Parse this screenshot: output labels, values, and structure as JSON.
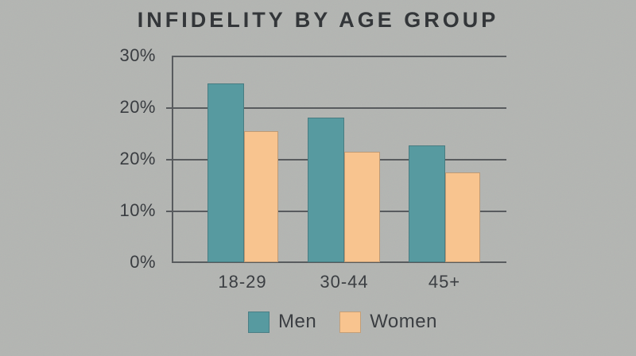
{
  "title": "INFIDELITY BY AGE GROUP",
  "colors": {
    "background": "#b3b5b2",
    "men_bar": "#579aa0",
    "women_bar": "#f8c48f",
    "gridline": "#585b5e",
    "text": "#3a3d41"
  },
  "chart_data": {
    "type": "bar",
    "title": "INFIDELITY BY AGE GROUP",
    "categories": [
      "18-29",
      "30-44",
      "45+"
    ],
    "series": [
      {
        "name": "Men",
        "color": "#579aa0",
        "values": [
          26,
          21,
          17
        ]
      },
      {
        "name": "Women",
        "color": "#f8c48f",
        "values": [
          19,
          16,
          13
        ]
      }
    ],
    "xlabel": "",
    "ylabel": "",
    "ylim": [
      0,
      30
    ],
    "y_tick_labels_top_to_bottom": [
      "30%",
      "20%",
      "20%",
      "10%",
      "0%"
    ],
    "grid": true,
    "legend_position": "bottom"
  },
  "legend": {
    "men_label": "Men",
    "women_label": "Women"
  }
}
